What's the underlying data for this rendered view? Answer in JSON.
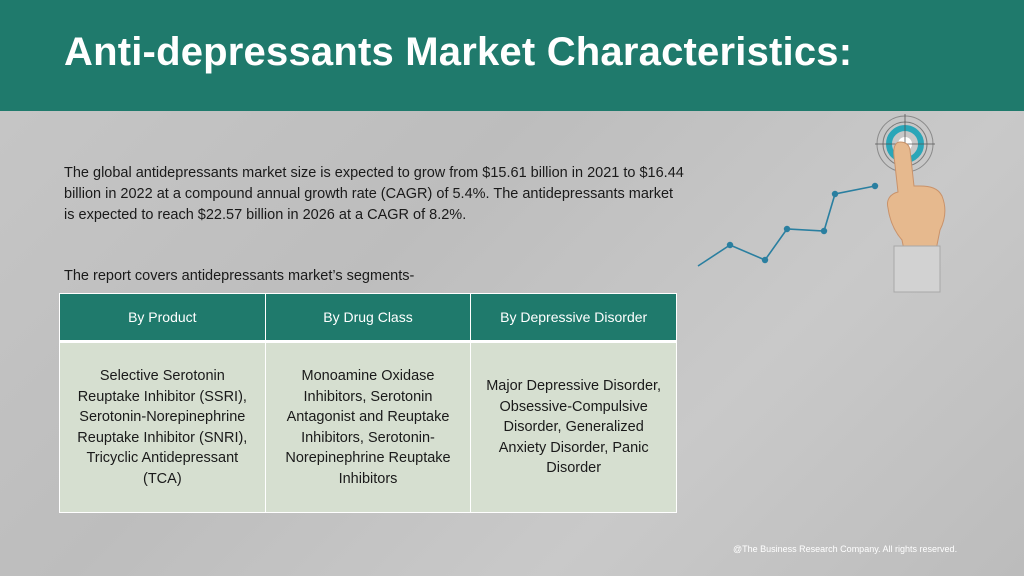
{
  "title": "Anti-depressants Market Characteristics:",
  "intro": "The global antidepressants market size is expected to grow from $15.61 billion in 2021 to $16.44 billion in 2022 at a compound annual growth rate (CAGR) of 5.4%. The antidepressants market is expected to reach $22.57 billion in 2026 at a CAGR of 8.2%.",
  "segments_label": "The report covers antidepressants market’s segments-",
  "table": {
    "headers": [
      "By Product",
      "By Drug Class",
      "By Depressive Disorder"
    ],
    "cells": [
      "Selective Serotonin Reuptake Inhibitor (SSRI), Serotonin-Norepinephrine Reuptake Inhibitor (SNRI), Tricyclic Antidepressant (TCA)",
      "Monoamine Oxidase Inhibitors, Serotonin Antagonist and Reuptake Inhibitors, Serotonin-Norepinephrine Reuptake Inhibitors",
      "Major Depressive Disorder, Obsessive-Compulsive Disorder, Generalized Anxiety Disorder, Panic Disorder"
    ]
  },
  "footer": "@The Business Research Company. All rights reserved.",
  "colors": {
    "header": "#1f7a6c",
    "table_body": "#d6dfd0",
    "graph_line": "#2a7fa0",
    "target_ring": "#2aa6b8"
  },
  "graphic_icons": [
    "growth-line-graph-icon",
    "target-icon",
    "pointing-hand-icon"
  ]
}
